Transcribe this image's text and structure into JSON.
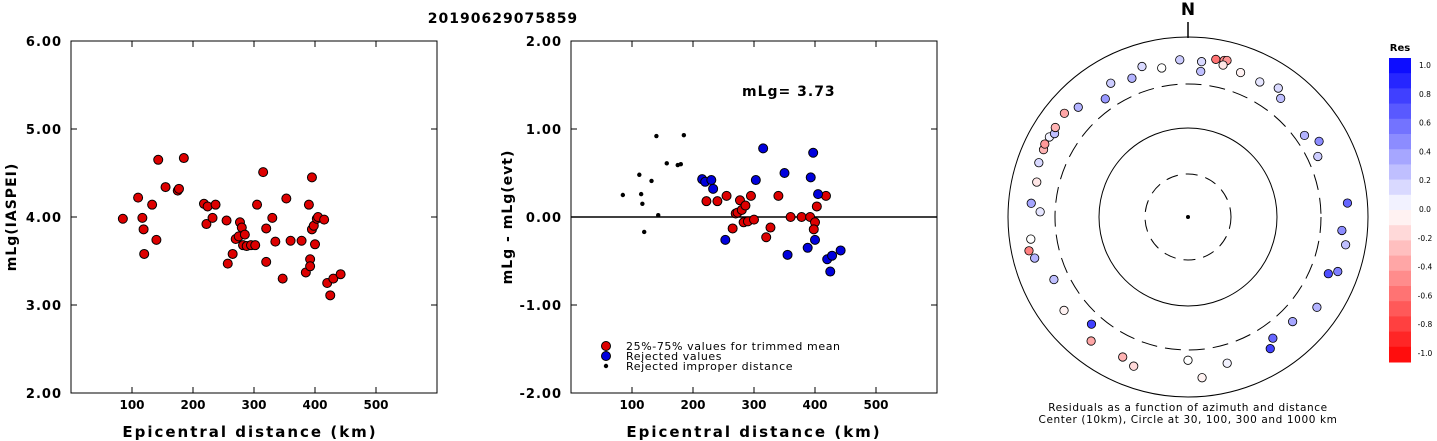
{
  "figure": {
    "title": "20190629075859",
    "legend": {
      "trimmed": "25%-75% values for trimmed mean",
      "rejected": "Rejected values",
      "improper": "Rejected improper distance"
    },
    "annotation": "mLg= 3.73"
  },
  "colors": {
    "used": "#dd0000",
    "rejected": "#0000dd",
    "improper": "#000000"
  },
  "chart_data": [
    {
      "type": "scatter",
      "xlabel": "Epicentral distance (km)",
      "ylabel": "mLg(IASPEI)",
      "xlim": [
        0,
        600
      ],
      "ylim": [
        2.0,
        6.0
      ],
      "xticks": [
        100,
        200,
        300,
        400,
        500
      ],
      "yticks": [
        "2.00",
        "3.00",
        "4.00",
        "5.00",
        "6.00"
      ],
      "series": [
        {
          "points": [
            [
              85,
              3.98
            ],
            [
              110,
              4.22
            ],
            [
              117,
              3.99
            ],
            [
              119,
              3.86
            ],
            [
              120,
              3.58
            ],
            [
              133,
              4.14
            ],
            [
              140,
              3.74
            ],
            [
              143,
              4.65
            ],
            [
              155,
              4.34
            ],
            [
              175,
              4.3
            ],
            [
              177,
              4.32
            ],
            [
              185,
              4.67
            ],
            [
              218,
              4.15
            ],
            [
              222,
              3.92
            ],
            [
              224,
              4.12
            ],
            [
              232,
              3.99
            ],
            [
              237,
              4.14
            ],
            [
              255,
              3.96
            ],
            [
              257,
              3.47
            ],
            [
              265,
              3.58
            ],
            [
              270,
              3.75
            ],
            [
              275,
              3.78
            ],
            [
              277,
              3.94
            ],
            [
              280,
              3.88
            ],
            [
              282,
              3.68
            ],
            [
              285,
              3.8
            ],
            [
              288,
              3.67
            ],
            [
              295,
              3.68
            ],
            [
              302,
              3.68
            ],
            [
              305,
              4.14
            ],
            [
              315,
              4.51
            ],
            [
              320,
              3.87
            ],
            [
              320,
              3.49
            ],
            [
              330,
              3.99
            ],
            [
              335,
              3.72
            ],
            [
              347,
              3.3
            ],
            [
              353,
              4.21
            ],
            [
              360,
              3.73
            ],
            [
              378,
              3.73
            ],
            [
              385,
              3.37
            ],
            [
              390,
              4.14
            ],
            [
              392,
              3.52
            ],
            [
              395,
              4.45
            ],
            [
              395,
              3.86
            ],
            [
              398,
              3.9
            ],
            [
              400,
              3.69
            ],
            [
              403,
              3.98
            ],
            [
              405,
              4.0
            ],
            [
              415,
              3.97
            ],
            [
              420,
              3.25
            ],
            [
              425,
              3.11
            ],
            [
              430,
              3.3
            ],
            [
              442,
              3.35
            ],
            [
              392,
              3.44
            ]
          ]
        }
      ]
    },
    {
      "type": "scatter",
      "xlabel": "Epicentral distance (km)",
      "ylabel": "mLg - mLg(evt)",
      "xlim": [
        0,
        600
      ],
      "ylim": [
        -2.0,
        2.0
      ],
      "xticks": [
        100,
        200,
        300,
        400,
        500
      ],
      "yticks": [
        "-2.00",
        "-1.00",
        "0.00",
        "1.00",
        "2.00"
      ],
      "series": [
        {
          "name": "25%-75% values for trimmed mean",
          "points": [
            [
              222,
              0.18
            ],
            [
              240,
              0.18
            ],
            [
              255,
              0.24
            ],
            [
              265,
              -0.13
            ],
            [
              270,
              0.04
            ],
            [
              273,
              0.05
            ],
            [
              277,
              0.19
            ],
            [
              280,
              0.08
            ],
            [
              283,
              -0.06
            ],
            [
              286,
              0.13
            ],
            [
              290,
              -0.05
            ],
            [
              295,
              0.24
            ],
            [
              300,
              -0.03
            ],
            [
              320,
              -0.23
            ],
            [
              327,
              -0.12
            ],
            [
              340,
              0.24
            ],
            [
              360,
              0.0
            ],
            [
              378,
              0.0
            ],
            [
              392,
              0.0
            ],
            [
              400,
              -0.06
            ],
            [
              403,
              0.12
            ],
            [
              418,
              0.24
            ],
            [
              398,
              -0.14
            ]
          ]
        },
        {
          "name": "Rejected values",
          "points": [
            [
              215,
              0.43
            ],
            [
              220,
              0.4
            ],
            [
              230,
              0.42
            ],
            [
              233,
              0.32
            ],
            [
              253,
              -0.26
            ],
            [
              303,
              0.42
            ],
            [
              315,
              0.78
            ],
            [
              350,
              0.5
            ],
            [
              355,
              -0.43
            ],
            [
              388,
              -0.35
            ],
            [
              393,
              0.45
            ],
            [
              397,
              0.73
            ],
            [
              400,
              -0.26
            ],
            [
              405,
              0.26
            ],
            [
              420,
              -0.48
            ],
            [
              425,
              -0.62
            ],
            [
              428,
              -0.44
            ],
            [
              442,
              -0.38
            ]
          ]
        },
        {
          "name": "Rejected improper distance",
          "points": [
            [
              85,
              0.25
            ],
            [
              112,
              0.48
            ],
            [
              115,
              0.26
            ],
            [
              117,
              0.15
            ],
            [
              120,
              -0.17
            ],
            [
              132,
              0.41
            ],
            [
              140,
              0.92
            ],
            [
              143,
              0.02
            ],
            [
              157,
              0.61
            ],
            [
              175,
              0.59
            ],
            [
              185,
              0.93
            ],
            [
              180,
              0.6
            ]
          ]
        }
      ]
    },
    {
      "type": "scatter",
      "title": "N",
      "caption_line1": "Residuals as a function of azimuth and distance",
      "caption_line2": "Center (10km), Circle at 30, 100, 300 and 1000 km",
      "colorbar_label": "Res",
      "colorbar_ticks": [
        "1.0",
        "0.8",
        "0.6",
        "0.4",
        "0.2",
        "0.0",
        "-0.2",
        "-0.4",
        "-0.6",
        "-0.8",
        "-1.0"
      ],
      "points": [
        {
          "azimuth": 10,
          "distance_km": 600,
          "residual": -0.55
        },
        {
          "azimuth": 13,
          "distance_km": 610,
          "residual": -0.45
        },
        {
          "azimuth": 14,
          "distance_km": 620,
          "residual": -0.42
        },
        {
          "azimuth": 13,
          "distance_km": 540,
          "residual": -0.1
        },
        {
          "azimuth": 20,
          "distance_km": 510,
          "residual": -0.05
        },
        {
          "azimuth": 28,
          "distance_km": 500,
          "residual": 0.1
        },
        {
          "azimuth": 35,
          "distance_km": 560,
          "residual": 0.15
        },
        {
          "azimuth": 38,
          "distance_km": 470,
          "residual": 0.25
        },
        {
          "azimuth": 55,
          "distance_km": 380,
          "residual": 0.3
        },
        {
          "azimuth": 60,
          "distance_km": 480,
          "residual": 0.45
        },
        {
          "azimuth": 65,
          "distance_km": 390,
          "residual": 0.2
        },
        {
          "azimuth": 85,
          "distance_km": 600,
          "residual": 0.6
        },
        {
          "azimuth": 95,
          "distance_km": 520,
          "residual": 0.45
        },
        {
          "azimuth": 100,
          "distance_km": 600,
          "residual": 0.25
        },
        {
          "azimuth": 110,
          "distance_km": 590,
          "residual": 0.5
        },
        {
          "azimuth": 112,
          "distance_km": 480,
          "residual": 0.7
        },
        {
          "azimuth": 125,
          "distance_km": 560,
          "residual": 0.3
        },
        {
          "azimuth": 135,
          "distance_km": 440,
          "residual": 0.35
        },
        {
          "azimuth": 145,
          "distance_km": 440,
          "residual": 0.6
        },
        {
          "azimuth": 148,
          "distance_km": 530,
          "residual": 0.75
        },
        {
          "azimuth": 165,
          "distance_km": 480,
          "residual": 0.05
        },
        {
          "azimuth": 175,
          "distance_km": 620,
          "residual": -0.05
        },
        {
          "azimuth": 180,
          "distance_km": 390,
          "residual": 0.0
        },
        {
          "azimuth": 200,
          "distance_km": 580,
          "residual": -0.15
        },
        {
          "azimuth": 205,
          "distance_km": 520,
          "residual": -0.3
        },
        {
          "azimuth": 218,
          "distance_km": 560,
          "residual": -0.35
        },
        {
          "azimuth": 222,
          "distance_km": 400,
          "residual": 0.75
        },
        {
          "azimuth": 233,
          "distance_km": 530,
          "residual": -0.05
        },
        {
          "azimuth": 245,
          "distance_km": 440,
          "residual": 0.25
        },
        {
          "azimuth": 255,
          "distance_km": 580,
          "residual": 0.3
        },
        {
          "azimuth": 258,
          "distance_km": 640,
          "residual": -0.5
        },
        {
          "azimuth": 262,
          "distance_km": 580,
          "residual": 0.0
        },
        {
          "azimuth": 272,
          "distance_km": 440,
          "residual": 0.1
        },
        {
          "azimuth": 275,
          "distance_km": 560,
          "residual": 0.35
        },
        {
          "azimuth": 283,
          "distance_km": 530,
          "residual": -0.1
        },
        {
          "azimuth": 290,
          "distance_km": 580,
          "residual": 0.15
        },
        {
          "azimuth": 295,
          "distance_km": 590,
          "residual": -0.3
        },
        {
          "azimuth": 297,
          "distance_km": 610,
          "residual": -0.4
        },
        {
          "azimuth": 300,
          "distance_km": 600,
          "residual": 0.05
        },
        {
          "azimuth": 302,
          "distance_km": 560,
          "residual": 0.25
        },
        {
          "azimuth": 304,
          "distance_km": 600,
          "residual": -0.3
        },
        {
          "azimuth": 310,
          "distance_km": 620,
          "residual": -0.35
        },
        {
          "azimuth": 315,
          "distance_km": 530,
          "residual": 0.3
        },
        {
          "azimuth": 325,
          "distance_km": 400,
          "residual": 0.4
        },
        {
          "azimuth": 330,
          "distance_km": 520,
          "residual": 0.2
        },
        {
          "azimuth": 338,
          "distance_km": 460,
          "residual": 0.3
        },
        {
          "azimuth": 343,
          "distance_km": 560,
          "residual": 0.15
        },
        {
          "azimuth": 350,
          "distance_km": 480,
          "residual": 0.0
        },
        {
          "azimuth": 357,
          "distance_km": 560,
          "residual": 0.2
        },
        {
          "azimuth": 5,
          "distance_km": 540,
          "residual": 0.15
        },
        {
          "azimuth": 5,
          "distance_km": 420,
          "residual": 0.25
        }
      ]
    }
  ]
}
